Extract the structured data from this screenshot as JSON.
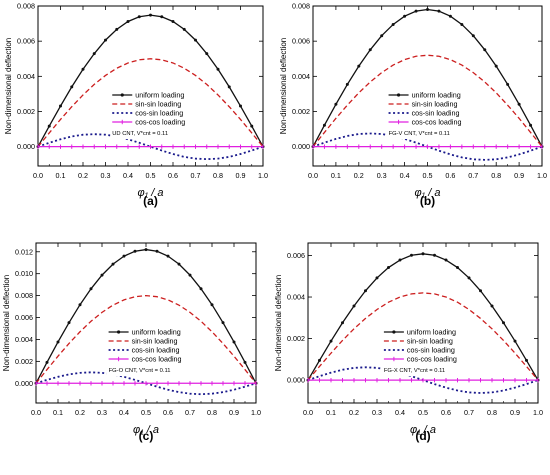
{
  "chart_data": [
    {
      "type": "line",
      "panel_label": "(a)",
      "annotation": "UD CNT,  V*cnt = 0.11",
      "xlabel": "φ₁ / a",
      "ylabel": "Non-dimensional deflection",
      "x_ticks": [
        "0.0",
        "0.1",
        "0.2",
        "0.3",
        "0.4",
        "0.5",
        "0.6",
        "0.7",
        "0.8",
        "0.9",
        "1.0"
      ],
      "y_ticks": [
        "0.000",
        "0.002",
        "0.004",
        "0.006",
        "0.008"
      ],
      "xlim": [
        0,
        1
      ],
      "ylim": [
        -0.0011,
        0.008
      ],
      "x": [
        0,
        0.05,
        0.1,
        0.15,
        0.2,
        0.25,
        0.3,
        0.35,
        0.4,
        0.45,
        0.5,
        0.55,
        0.6,
        0.65,
        0.7,
        0.75,
        0.8,
        0.85,
        0.9,
        0.95,
        1.0
      ],
      "legend_position": "center",
      "series": [
        {
          "name": "uniform loading",
          "values": [
            0,
            0.00117,
            0.00231,
            0.0034,
            0.0044,
            0.00529,
            0.00606,
            0.00667,
            0.00712,
            0.00739,
            0.00748,
            0.00739,
            0.00712,
            0.00667,
            0.00606,
            0.00529,
            0.0044,
            0.0034,
            0.00231,
            0.00117,
            0
          ]
        },
        {
          "name": "sin-sin loading",
          "values": [
            0,
            0.00078,
            0.00155,
            0.00227,
            0.00294,
            0.00354,
            0.00405,
            0.00446,
            0.00476,
            0.00494,
            0.005,
            0.00494,
            0.00476,
            0.00446,
            0.00405,
            0.00354,
            0.00294,
            0.00227,
            0.00155,
            0.00078,
            0
          ]
        },
        {
          "name": "cos-sin loading",
          "values": [
            0,
            0.00022,
            0.00042,
            0.00058,
            0.00068,
            0.00071,
            0.00068,
            0.00058,
            0.00042,
            0.00022,
            0,
            -0.00022,
            -0.00042,
            -0.00058,
            -0.00068,
            -0.00071,
            -0.00068,
            -0.00058,
            -0.00042,
            -0.00022,
            0
          ]
        },
        {
          "name": "cos-cos loading",
          "values": [
            0,
            0,
            0,
            0,
            0,
            0,
            0,
            0,
            0,
            0,
            0,
            0,
            0,
            0,
            0,
            0,
            0,
            0,
            0,
            0,
            0
          ]
        }
      ]
    },
    {
      "type": "line",
      "panel_label": "(b)",
      "annotation": "FG-V CNT,  V*cnt = 0.11",
      "xlabel": "φ₁ / a",
      "ylabel": "Non-dimensional deflection",
      "x_ticks": [
        "0.0",
        "0.1",
        "0.2",
        "0.3",
        "0.4",
        "0.5",
        "0.6",
        "0.7",
        "0.8",
        "0.9",
        "1.0"
      ],
      "y_ticks": [
        "0.000",
        "0.002",
        "0.004",
        "0.006",
        "0.008"
      ],
      "xlim": [
        0,
        1
      ],
      "ylim": [
        -0.0011,
        0.008
      ],
      "x": [
        0,
        0.05,
        0.1,
        0.15,
        0.2,
        0.25,
        0.3,
        0.35,
        0.4,
        0.45,
        0.5,
        0.55,
        0.6,
        0.65,
        0.7,
        0.75,
        0.8,
        0.85,
        0.9,
        0.95,
        1.0
      ],
      "legend_position": "center",
      "series": [
        {
          "name": "uniform loading",
          "values": [
            0,
            0.00122,
            0.00241,
            0.00354,
            0.00458,
            0.00551,
            0.00631,
            0.00695,
            0.00742,
            0.00771,
            0.0078,
            0.00771,
            0.00742,
            0.00695,
            0.00631,
            0.00551,
            0.00458,
            0.00354,
            0.00241,
            0.00122,
            0
          ]
        },
        {
          "name": "sin-sin loading",
          "values": [
            0,
            0.00081,
            0.00161,
            0.00236,
            0.00306,
            0.00368,
            0.00421,
            0.00464,
            0.00495,
            0.00514,
            0.0052,
            0.00514,
            0.00495,
            0.00464,
            0.00421,
            0.00368,
            0.00306,
            0.00236,
            0.00161,
            0.00081,
            0
          ]
        },
        {
          "name": "cos-sin loading",
          "values": [
            0,
            0.00023,
            0.00044,
            0.00061,
            0.00072,
            0.00075,
            0.00072,
            0.00061,
            0.00044,
            0.00023,
            0,
            -0.00023,
            -0.00044,
            -0.00061,
            -0.00072,
            -0.00075,
            -0.00072,
            -0.00061,
            -0.00044,
            -0.00023,
            0
          ]
        },
        {
          "name": "cos-cos loading",
          "values": [
            0,
            0,
            0,
            0,
            0,
            0,
            0,
            0,
            0,
            0,
            0,
            0,
            0,
            0,
            0,
            0,
            0,
            0,
            0,
            0,
            0
          ]
        }
      ]
    },
    {
      "type": "line",
      "panel_label": "(c)",
      "annotation": "FG-O CNT,  V*cnt = 0.11",
      "xlabel": "φ₁ / a",
      "ylabel": "Non-dimensional deflection",
      "x_ticks": [
        "0.0",
        "0.1",
        "0.2",
        "0.3",
        "0.4",
        "0.5",
        "0.6",
        "0.7",
        "0.8",
        "0.9",
        "1.0"
      ],
      "y_ticks": [
        "0.000",
        "0.002",
        "0.004",
        "0.006",
        "0.008",
        "0.010",
        "0.012"
      ],
      "xlim": [
        0,
        1
      ],
      "ylim": [
        -0.0018,
        0.0128
      ],
      "x": [
        0,
        0.05,
        0.1,
        0.15,
        0.2,
        0.25,
        0.3,
        0.35,
        0.4,
        0.45,
        0.5,
        0.55,
        0.6,
        0.65,
        0.7,
        0.75,
        0.8,
        0.85,
        0.9,
        0.95,
        1.0
      ],
      "legend_position": "center",
      "series": [
        {
          "name": "uniform loading",
          "values": [
            0,
            0.00191,
            0.00377,
            0.00553,
            0.00717,
            0.00862,
            0.00987,
            0.01087,
            0.0116,
            0.01205,
            0.0122,
            0.01205,
            0.0116,
            0.01087,
            0.00987,
            0.00862,
            0.00717,
            0.00553,
            0.00377,
            0.00191,
            0
          ]
        },
        {
          "name": "sin-sin loading",
          "values": [
            0,
            0.00125,
            0.00247,
            0.00363,
            0.0047,
            0.00566,
            0.00647,
            0.00713,
            0.00761,
            0.0079,
            0.008,
            0.0079,
            0.00761,
            0.00713,
            0.00647,
            0.00566,
            0.0047,
            0.00363,
            0.00247,
            0.00125,
            0
          ]
        },
        {
          "name": "cos-sin loading",
          "values": [
            0,
            0.00031,
            0.00059,
            0.00081,
            0.00095,
            0.001,
            0.00095,
            0.00081,
            0.00059,
            0.00031,
            0,
            -0.00031,
            -0.00059,
            -0.00081,
            -0.00095,
            -0.001,
            -0.00095,
            -0.00081,
            -0.00059,
            -0.00031,
            0
          ]
        },
        {
          "name": "cos-cos loading",
          "values": [
            0,
            0,
            0,
            0,
            0,
            0,
            0,
            0,
            0,
            0,
            0,
            0,
            0,
            0,
            0,
            0,
            0,
            0,
            0,
            0,
            0
          ]
        }
      ]
    },
    {
      "type": "line",
      "panel_label": "(d)",
      "annotation": "FG-X CNT,  V*cnt = 0.11",
      "xlabel": "φ₁ / a",
      "ylabel": "Non-dimensional deflection",
      "x_ticks": [
        "0.0",
        "0.1",
        "0.2",
        "0.3",
        "0.4",
        "0.5",
        "0.6",
        "0.7",
        "0.8",
        "0.9",
        "1.0"
      ],
      "y_ticks": [
        "0.000",
        "0.002",
        "0.004",
        "0.006"
      ],
      "xlim": [
        0,
        1
      ],
      "ylim": [
        -0.0011,
        0.0066
      ],
      "x": [
        0,
        0.05,
        0.1,
        0.15,
        0.2,
        0.25,
        0.3,
        0.35,
        0.4,
        0.45,
        0.5,
        0.55,
        0.6,
        0.65,
        0.7,
        0.75,
        0.8,
        0.85,
        0.9,
        0.95,
        1.0
      ],
      "legend_position": "center",
      "series": [
        {
          "name": "uniform loading",
          "values": [
            0,
            0.00095,
            0.00188,
            0.00276,
            0.00357,
            0.0043,
            0.00492,
            0.00542,
            0.00578,
            0.00601,
            0.00608,
            0.00601,
            0.00578,
            0.00542,
            0.00492,
            0.0043,
            0.00357,
            0.00276,
            0.00188,
            0.00095,
            0
          ]
        },
        {
          "name": "sin-sin loading",
          "values": [
            0,
            0.00066,
            0.0013,
            0.00191,
            0.00247,
            0.00297,
            0.0034,
            0.00375,
            0.004,
            0.00415,
            0.0042,
            0.00415,
            0.004,
            0.00375,
            0.0034,
            0.00297,
            0.00247,
            0.00191,
            0.0013,
            0.00066,
            0
          ]
        },
        {
          "name": "cos-sin loading",
          "values": [
            0,
            0.00019,
            0.00036,
            0.0005,
            0.00059,
            0.00062,
            0.00059,
            0.0005,
            0.00036,
            0.00019,
            0,
            -0.00019,
            -0.00036,
            -0.0005,
            -0.00059,
            -0.00062,
            -0.00059,
            -0.0005,
            -0.00036,
            -0.00019,
            0
          ]
        },
        {
          "name": "cos-cos loading",
          "values": [
            0,
            0,
            0,
            0,
            0,
            0,
            0,
            0,
            0,
            0,
            0,
            0,
            0,
            0,
            0,
            0,
            0,
            0,
            0,
            0,
            0
          ]
        }
      ]
    }
  ],
  "colors": {
    "uniform": "#111111",
    "sin_sin": "#cc1f1f",
    "cos_sin": "#1a1a8c",
    "cos_cos": "#e020e0",
    "axis": "#000000"
  }
}
